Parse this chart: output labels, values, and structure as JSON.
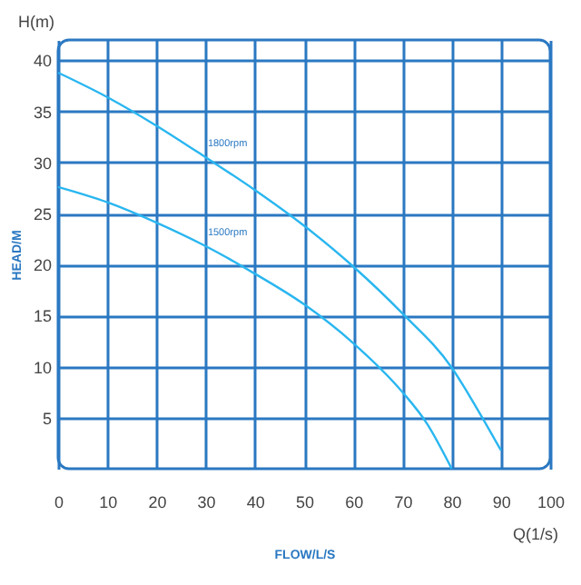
{
  "chart_data": {
    "type": "line",
    "xlabel": "FLOW/L/S",
    "ylabel": "HEAD/M",
    "annotations": [
      "H(m)",
      "Q(1/s)"
    ],
    "series": [
      {
        "name": "1800rpm",
        "color": "#29b6f0",
        "x": [
          0,
          10,
          20,
          30,
          40,
          50,
          60,
          70,
          80,
          85,
          90
        ],
        "values": [
          38.8,
          36.4,
          33.6,
          30.5,
          27.3,
          23.8,
          19.8,
          15.2,
          9.9,
          6,
          1.8
        ]
      },
      {
        "name": "1500rpm",
        "color": "#29b6f0",
        "x": [
          0,
          10,
          20,
          30,
          40,
          50,
          60,
          70,
          75,
          80
        ],
        "values": [
          27.6,
          26.1,
          24.1,
          21.8,
          19.1,
          16.1,
          12.3,
          7.5,
          4.4,
          0
        ]
      }
    ],
    "xlim": [
      0,
      100
    ],
    "xticks": [
      0,
      10,
      20,
      30,
      40,
      50,
      60,
      70,
      80,
      90,
      100
    ],
    "ylim": [
      0,
      42
    ],
    "yticks": [
      5,
      10,
      15,
      20,
      25,
      30,
      35,
      40
    ],
    "grid": true,
    "legend": false,
    "marker": "none",
    "line_style": "solid"
  }
}
